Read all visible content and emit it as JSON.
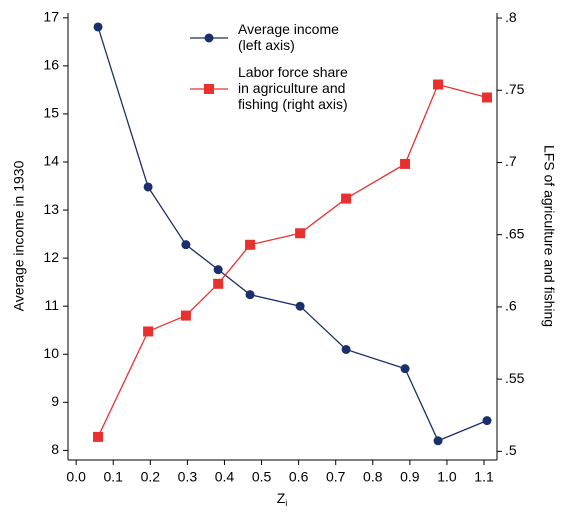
{
  "chart_data": {
    "type": "line",
    "ylabel": "Average income in 1930",
    "y2label": "LFS of agriculture and fishing",
    "xlabel": "Z",
    "xlabel_subscript": "i",
    "x": [
      0.059,
      0.194,
      0.296,
      0.383,
      0.469,
      0.604,
      0.728,
      0.887,
      0.976,
      1.108
    ],
    "series": [
      {
        "name": "Average income\n(left axis)",
        "color": "#1a2f6b",
        "marker": "circle",
        "values": [
          16.81,
          13.48,
          12.28,
          11.76,
          11.24,
          11.0,
          10.1,
          9.7,
          8.2,
          8.62
        ]
      },
      {
        "name": "Labor force share\nin agriculture and\nfishing (right axis)",
        "color": "#e8312f",
        "marker": "square",
        "axis": "y2",
        "values": [
          0.51,
          0.583,
          0.594,
          0.616,
          0.643,
          0.651,
          0.675,
          0.699,
          0.754,
          0.745
        ]
      }
    ],
    "xlim": [
      -0.022,
      1.135
    ],
    "xticks": [
      {
        "value": 0,
        "label": "0.0"
      },
      0.1,
      0.2,
      0.3,
      0.4,
      0.5,
      0.6,
      0.7,
      0.8,
      0.9,
      {
        "value": 1,
        "label": "1.0"
      },
      1.1
    ],
    "ylim": [
      7.8,
      17.1
    ],
    "yticks": [
      8,
      9,
      10,
      11,
      12,
      13,
      14,
      15,
      16,
      17
    ],
    "y2lim": [
      0.494,
      0.8035
    ],
    "y2ticks": [
      {
        "value": 0.5,
        "label": ".5"
      },
      {
        "value": 0.55,
        "label": ".55"
      },
      {
        "value": 0.6,
        "label": ".6"
      },
      {
        "value": 0.65,
        "label": ".65"
      },
      {
        "value": 0.7,
        "label": ".7"
      },
      {
        "value": 0.75,
        "label": ".75"
      },
      {
        "value": 0.8,
        "label": ".8"
      }
    ],
    "grid": false
  }
}
